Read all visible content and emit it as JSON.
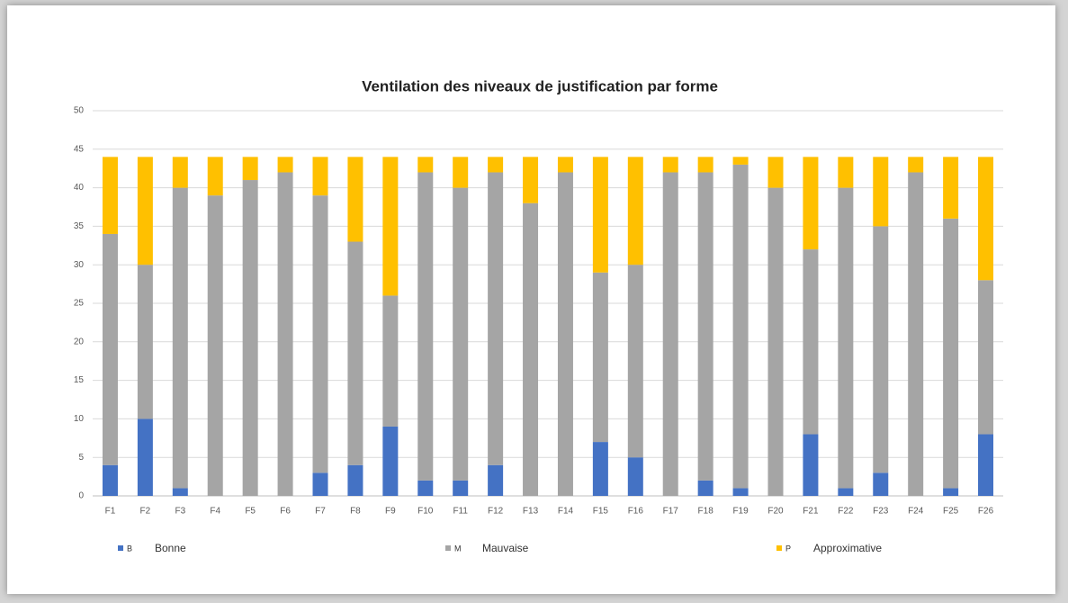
{
  "chart_data": {
    "type": "stacked_bar",
    "title": "Ventilation des niveaux de justification par forme",
    "categories": [
      "F1",
      "F2",
      "F3",
      "F4",
      "F5",
      "F6",
      "F7",
      "F8",
      "F9",
      "F10",
      "F11",
      "F12",
      "F13",
      "F14",
      "F15",
      "F16",
      "F17",
      "F18",
      "F19",
      "F20",
      "F21",
      "F22",
      "F23",
      "F24",
      "F25",
      "F26"
    ],
    "series": [
      {
        "name": "B",
        "label": "Bonne",
        "color": "#4472c4",
        "values": [
          4,
          10,
          1,
          0,
          0,
          0,
          3,
          4,
          9,
          2,
          2,
          4,
          0,
          0,
          7,
          5,
          0,
          2,
          1,
          0,
          8,
          1,
          3,
          0,
          1,
          8
        ]
      },
      {
        "name": "M",
        "label": "Mauvaise",
        "color": "#a5a5a5",
        "values": [
          30,
          20,
          39,
          39,
          41,
          42,
          36,
          29,
          17,
          40,
          38,
          38,
          38,
          42,
          22,
          25,
          42,
          40,
          42,
          40,
          24,
          39,
          32,
          42,
          35,
          20
        ]
      },
      {
        "name": "P",
        "label": "Approximative",
        "color": "#ffc000",
        "values": [
          10,
          14,
          4,
          5,
          3,
          2,
          5,
          11,
          18,
          2,
          4,
          2,
          6,
          2,
          15,
          14,
          2,
          2,
          1,
          4,
          12,
          4,
          9,
          2,
          8,
          16
        ]
      }
    ],
    "ylim": [
      0,
      50
    ],
    "yticks": [
      0,
      5,
      10,
      15,
      20,
      25,
      30,
      35,
      40,
      45,
      50
    ],
    "grid": true,
    "legend": "bottom"
  }
}
